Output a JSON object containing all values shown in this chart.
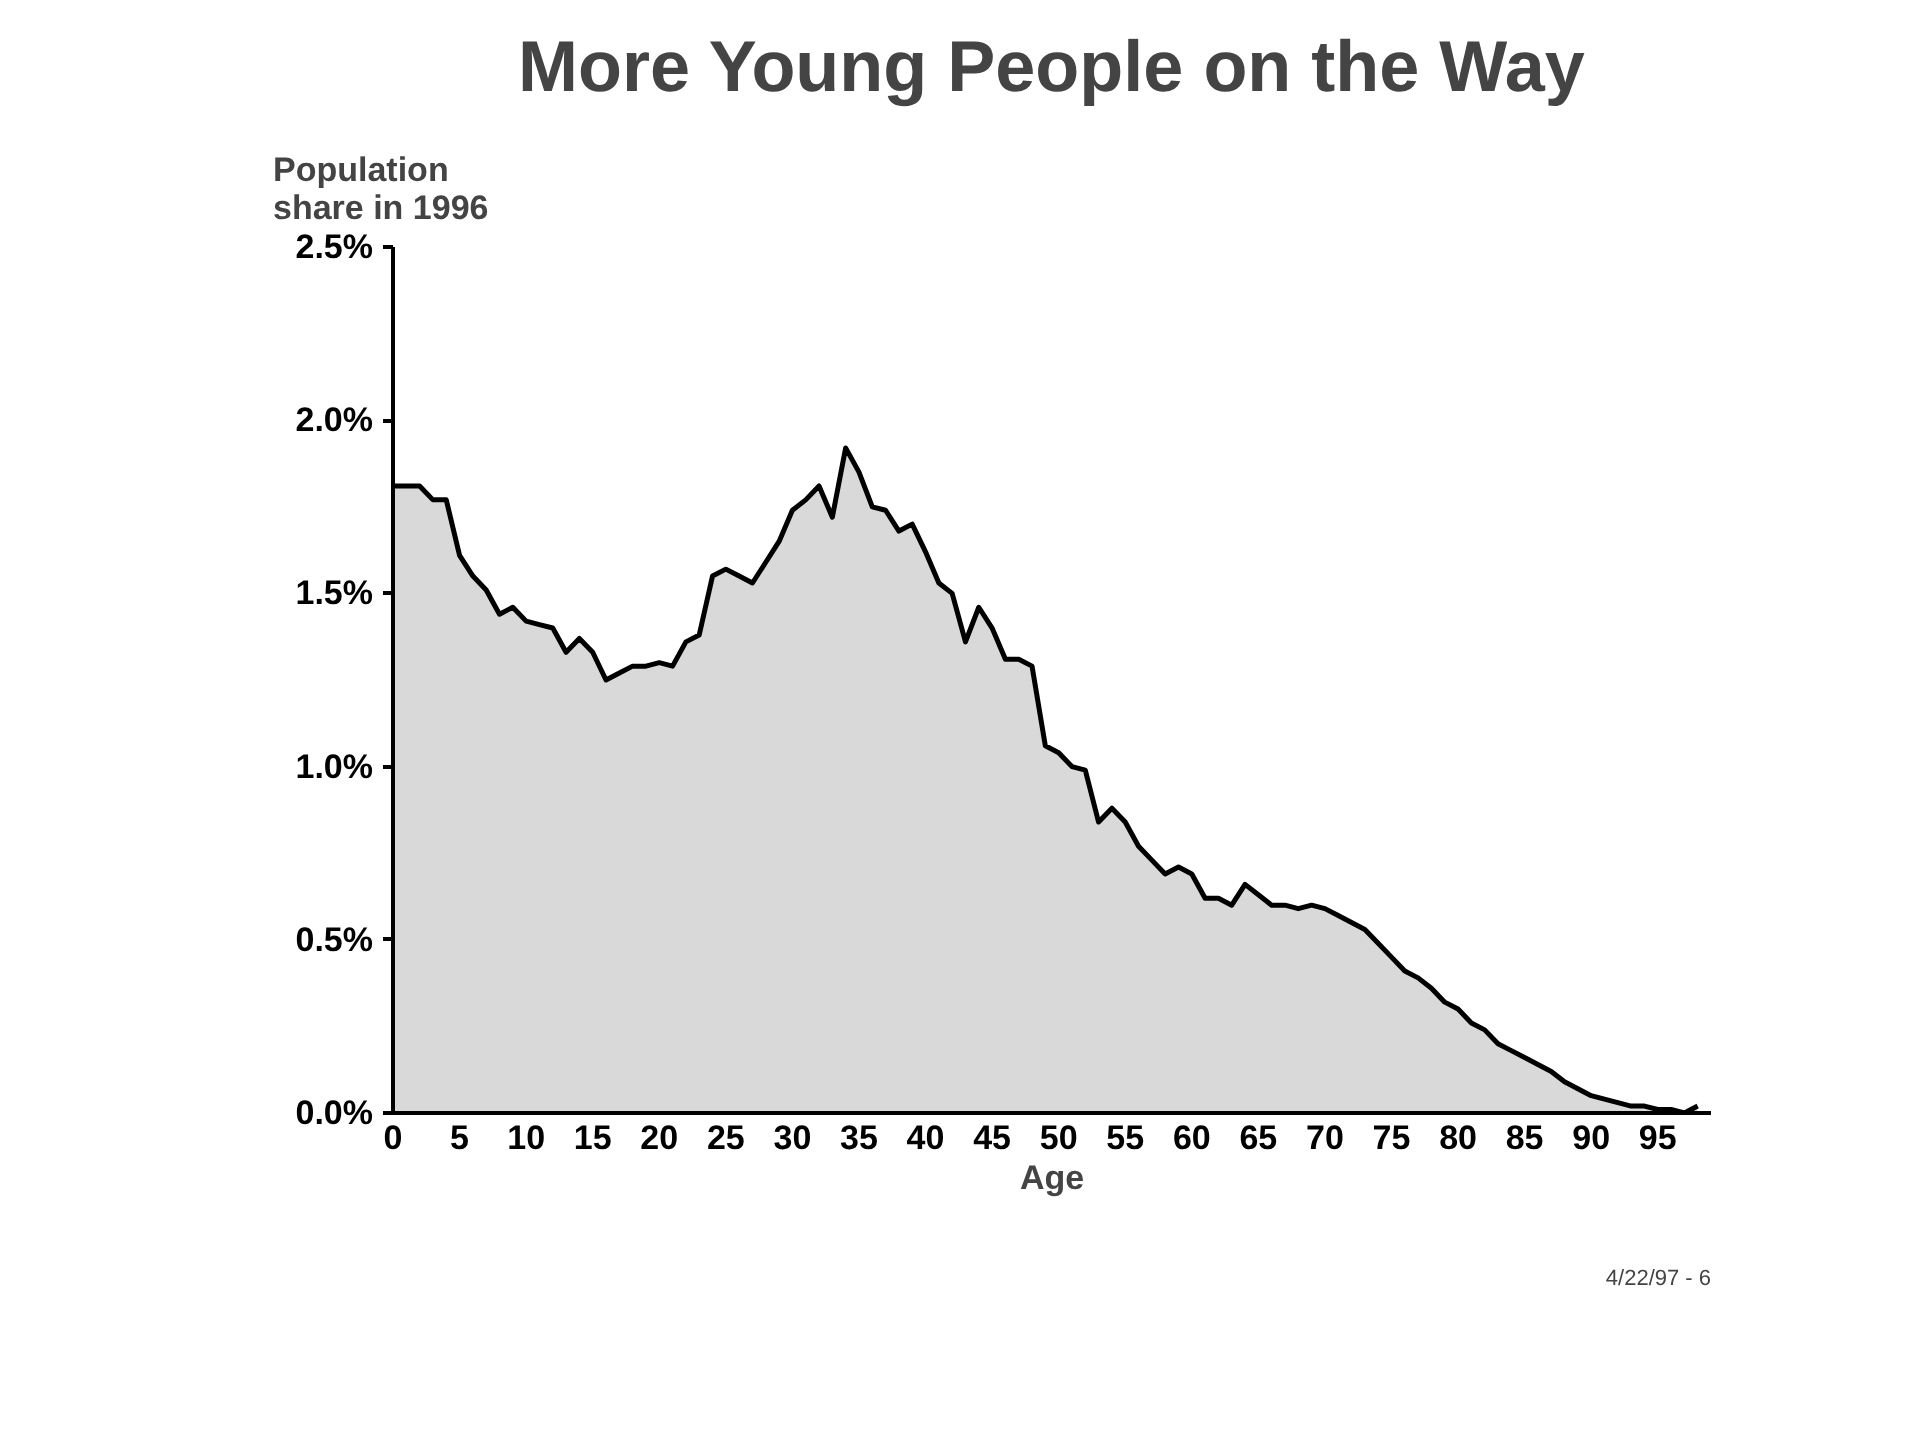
{
  "chart_data": {
    "type": "area",
    "title": "More Young People on the Way",
    "xlabel": "Age",
    "ylabel": "Population\nshare in 1996",
    "annotations": [
      "4/22/97 - 6"
    ],
    "x": [
      0,
      1,
      2,
      3,
      4,
      5,
      6,
      7,
      8,
      9,
      10,
      11,
      12,
      13,
      14,
      15,
      16,
      17,
      18,
      19,
      20,
      21,
      22,
      23,
      24,
      25,
      26,
      27,
      28,
      29,
      30,
      31,
      32,
      33,
      34,
      35,
      36,
      37,
      38,
      39,
      40,
      41,
      42,
      43,
      44,
      45,
      46,
      47,
      48,
      49,
      50,
      51,
      52,
      53,
      54,
      55,
      56,
      57,
      58,
      59,
      60,
      61,
      62,
      63,
      64,
      65,
      66,
      67,
      68,
      69,
      70,
      71,
      72,
      73,
      74,
      75,
      76,
      77,
      78,
      79,
      80,
      81,
      82,
      83,
      84,
      85,
      86,
      87,
      88,
      89,
      90,
      91,
      92,
      93,
      94,
      95,
      96,
      97,
      98
    ],
    "series": [
      {
        "color": "#d9d9d9",
        "values": [
          1.81,
          1.81,
          1.81,
          1.77,
          1.77,
          1.61,
          1.55,
          1.51,
          1.44,
          1.46,
          1.42,
          1.41,
          1.4,
          1.33,
          1.37,
          1.33,
          1.25,
          1.27,
          1.29,
          1.29,
          1.3,
          1.29,
          1.36,
          1.38,
          1.55,
          1.57,
          1.55,
          1.53,
          1.59,
          1.65,
          1.74,
          1.77,
          1.81,
          1.72,
          1.92,
          1.85,
          1.75,
          1.74,
          1.68,
          1.7,
          1.62,
          1.53,
          1.5,
          1.36,
          1.46,
          1.4,
          1.31,
          1.31,
          1.29,
          1.06,
          1.04,
          1.0,
          0.99,
          0.84,
          0.88,
          0.84,
          0.77,
          0.73,
          0.69,
          0.71,
          0.69,
          0.62,
          0.62,
          0.6,
          0.66,
          0.63,
          0.6,
          0.6,
          0.59,
          0.6,
          0.59,
          0.57,
          0.55,
          0.53,
          0.49,
          0.45,
          0.41,
          0.39,
          0.36,
          0.32,
          0.3,
          0.26,
          0.24,
          0.2,
          0.18,
          0.16,
          0.14,
          0.12,
          0.09,
          0.07,
          0.05,
          0.04,
          0.03,
          0.02,
          0.02,
          0.01,
          0.01,
          0.0,
          0.02
        ]
      }
    ],
    "xlim": [
      0,
      99
    ],
    "ylim": [
      0,
      2.5
    ],
    "xticks": [
      0,
      5,
      10,
      15,
      20,
      25,
      30,
      35,
      40,
      45,
      50,
      55,
      60,
      65,
      70,
      75,
      80,
      85,
      90,
      95
    ],
    "yticks": [
      {
        "value": 0,
        "label": "0.0%"
      },
      {
        "value": 0.5,
        "label": "0.5%"
      },
      {
        "value": 1.0,
        "label": "1.0%"
      },
      {
        "value": 1.5,
        "label": "1.5%"
      },
      {
        "value": 2.0,
        "label": "2.0%"
      },
      {
        "value": 2.5,
        "label": "2.5%"
      }
    ],
    "grid": false
  }
}
